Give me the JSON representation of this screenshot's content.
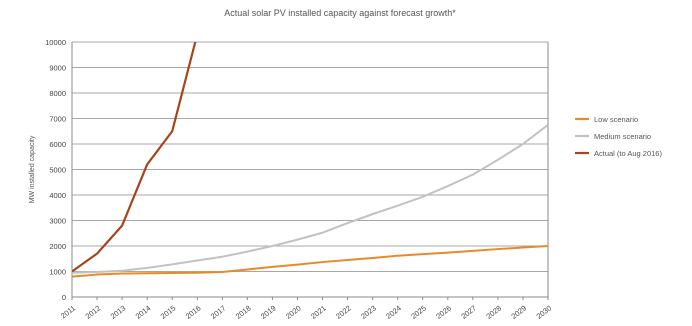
{
  "chart_data": {
    "type": "line",
    "title": "Actual solar PV installed capacity against forecast growth*",
    "xlabel": "",
    "ylabel": "MW installed capacity",
    "x": [
      "2011",
      "2012",
      "2013",
      "2014",
      "2015",
      "2016",
      "2017",
      "2018",
      "2019",
      "2020",
      "2021",
      "2022",
      "2023",
      "2024",
      "2025",
      "2026",
      "2027",
      "2028",
      "2029",
      "2030"
    ],
    "ylim": [
      0,
      10000
    ],
    "yticks": [
      0,
      1000,
      2000,
      3000,
      4000,
      5000,
      6000,
      7000,
      8000,
      9000,
      10000
    ],
    "grid": true,
    "legend": "right",
    "series": [
      {
        "name": "Low scenario",
        "color": "#e8892b",
        "values": [
          800,
          880,
          920,
          930,
          940,
          950,
          980,
          1080,
          1180,
          1270,
          1370,
          1450,
          1530,
          1620,
          1680,
          1740,
          1810,
          1880,
          1940,
          2000
        ]
      },
      {
        "name": "Medium scenario",
        "color": "#c2c2c2",
        "values": [
          950,
          980,
          1030,
          1140,
          1280,
          1430,
          1580,
          1780,
          2000,
          2250,
          2520,
          2900,
          3250,
          3580,
          3930,
          4350,
          4800,
          5380,
          6000,
          6750
        ]
      },
      {
        "name": "Actual (to Aug 2016)",
        "color": "#a5451c",
        "x": [
          "2011",
          "2012",
          "2013",
          "2014",
          "2015",
          "2016"
        ],
        "values": [
          1000,
          1700,
          2800,
          5200,
          6500,
          10300
        ]
      }
    ]
  }
}
